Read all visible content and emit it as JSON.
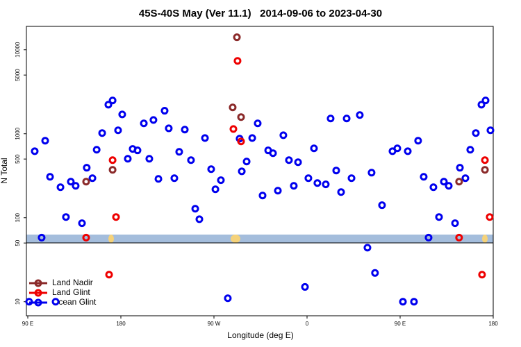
{
  "chart_data": {
    "type": "scatter",
    "title": "45S-40S May (Ver 11.1)   2014-09-06 to 2023-04-30",
    "x_label": "Longitude (deg E)",
    "y_label": "N Total",
    "xlim": [
      90,
      540
    ],
    "xticks": [
      {
        "value": 90,
        "label": "90 E"
      },
      {
        "value": 180,
        "label": "180"
      },
      {
        "value": 270,
        "label": "90 W"
      },
      {
        "value": 360,
        "label": "0"
      },
      {
        "value": 450,
        "label": "90 E"
      },
      {
        "value": 540,
        "label": "180"
      }
    ],
    "ylim": [
      6.8,
      19000
    ],
    "yscale": "log",
    "yticks": [
      10,
      50,
      100,
      500,
      1000,
      5000,
      10000
    ],
    "legend": "lower left",
    "series": [
      {
        "name": "Land Nadir",
        "color": "#8b2a2a",
        "x": [
          146.4,
          172,
          288.1,
          292.2,
          296.2,
          507,
          532
        ],
        "values": [
          269,
          372,
          2060,
          14100,
          1580,
          269,
          372
        ]
      },
      {
        "name": "Land Glint",
        "color": "#ee0000",
        "x": [
          146.4,
          172,
          175.3,
          168.6,
          288.8,
          292.8,
          296.2,
          507,
          532,
          536.6,
          529.2
        ],
        "values": [
          58,
          485,
          102,
          21,
          1140,
          7380,
          811,
          58,
          485,
          102,
          21
        ]
      },
      {
        "name": "Ocean Glint",
        "color": "#0000ee",
        "x": [
          91.3,
          96.7,
          103.4,
          106.8,
          111.5,
          116.9,
          121.6,
          126.9,
          131.6,
          136.3,
          142.4,
          147,
          152.5,
          156.6,
          161.9,
          167.9,
          172,
          177.3,
          181.3,
          186.7,
          191.4,
          196.1,
          202.2,
          207.5,
          211.5,
          216.3,
          222.3,
          226.3,
          231.7,
          236.4,
          241.8,
          247.8,
          251.9,
          255.9,
          261.3,
          267.3,
          271.4,
          276.7,
          283.4,
          294.8,
          296.9,
          301.6,
          307,
          312.3,
          317,
          322.4,
          327.1,
          331.8,
          337.1,
          342.5,
          347.2,
          351.3,
          358,
          361.3,
          366.7,
          370,
          378.1,
          382.8,
          388.2,
          392.9,
          398.3,
          403,
          411,
          418.4,
          422.4,
          425.7,
          432.5,
          442.6,
          447.3,
          452.7,
          457.4,
          463.4,
          467.4,
          472.8,
          477.5,
          482.2,
          487.6,
          492.3,
          497,
          503.1,
          507.8,
          513.1,
          517.8,
          523.2,
          528.6,
          532.6,
          537.3
        ],
        "values": [
          10,
          620,
          58,
          826,
          307,
          10,
          231,
          102,
          269,
          240,
          86,
          394,
          296,
          645,
          1020,
          2220,
          2490,
          1100,
          1700,
          504,
          660,
          634,
          1330,
          504,
          1460,
          290,
          1880,
          1160,
          296,
          610,
          1120,
          485,
          128,
          96,
          890,
          379,
          218,
          280,
          11,
          875,
          357,
          467,
          890,
          1330,
          184,
          634,
          587,
          210,
          960,
          485,
          240,
          458,
          15,
          296,
          670,
          259,
          250,
          1520,
          365,
          202,
          1520,
          296,
          1670,
          44,
          344,
          22,
          141,
          620,
          670,
          10,
          620,
          10,
          826,
          307,
          58,
          231,
          102,
          269,
          240,
          86,
          394,
          296,
          645,
          1020,
          2220,
          2490,
          1100
        ]
      }
    ]
  }
}
